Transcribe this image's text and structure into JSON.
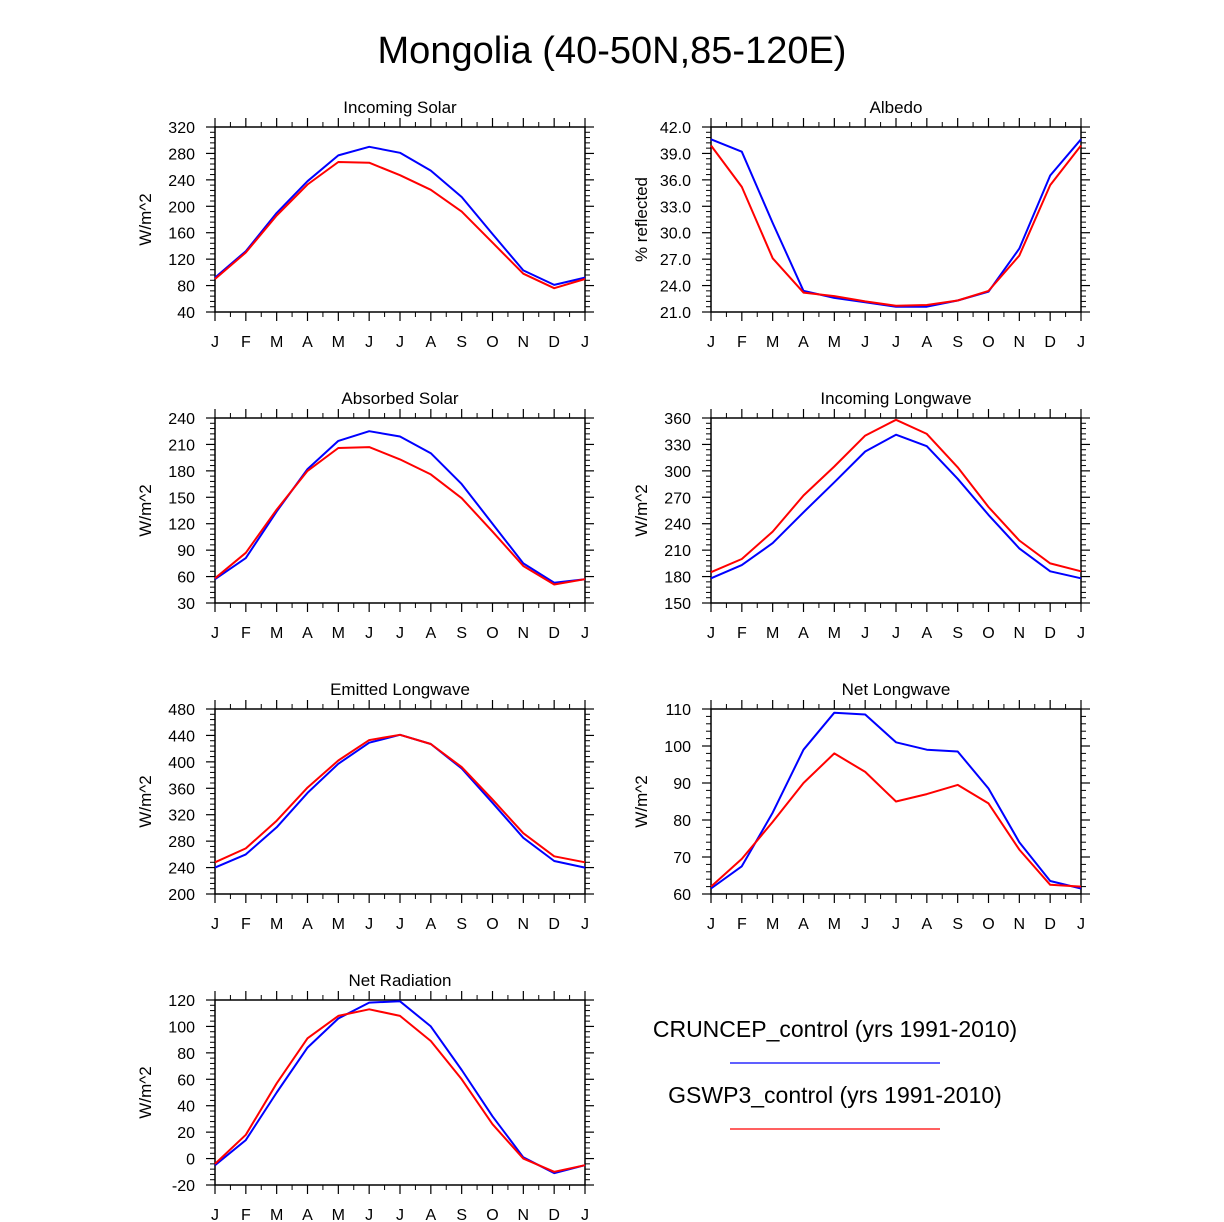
{
  "title": "Mongolia (40-50N,85-120E)",
  "legend": {
    "items": [
      {
        "label": "CRUNCEP_control (yrs 1991-2010)",
        "color": "#0000ff"
      },
      {
        "label": "GSWP3_control (yrs 1991-2010)",
        "color": "#ff0000"
      }
    ]
  },
  "chart_data": [
    {
      "type": "line",
      "title": "Incoming Solar",
      "ylabel": "W/m^2",
      "categories": [
        "J",
        "F",
        "M",
        "A",
        "M",
        "J",
        "J",
        "A",
        "S",
        "O",
        "N",
        "D",
        "J"
      ],
      "ylim": [
        40,
        320
      ],
      "yticks": [
        "40",
        "80",
        "120",
        "160",
        "200",
        "240",
        "280",
        "320"
      ],
      "series": [
        {
          "name": "CRUNCEP_control (yrs 1991-2010)",
          "color": "#0000ff",
          "values": [
            92,
            132,
            190,
            238,
            277,
            290,
            281,
            254,
            214,
            158,
            103,
            81,
            92
          ]
        },
        {
          "name": "GSWP3_control (yrs 1991-2010)",
          "color": "#ff0000",
          "values": [
            90,
            130,
            186,
            233,
            267,
            266,
            247,
            225,
            192,
            145,
            98,
            76,
            90
          ]
        }
      ]
    },
    {
      "type": "line",
      "title": "Albedo",
      "ylabel": "% reflected",
      "categories": [
        "J",
        "F",
        "M",
        "A",
        "M",
        "J",
        "J",
        "A",
        "S",
        "O",
        "N",
        "D",
        "J"
      ],
      "ylim": [
        21,
        42
      ],
      "yticks": [
        "21.0",
        "24.0",
        "27.0",
        "30.0",
        "33.0",
        "36.0",
        "39.0",
        "42.0"
      ],
      "series": [
        {
          "name": "CRUNCEP_control (yrs 1991-2010)",
          "color": "#0000ff",
          "values": [
            40.6,
            39.2,
            31.1,
            23.4,
            22.6,
            22.1,
            21.6,
            21.6,
            22.3,
            23.3,
            28.2,
            36.5,
            40.6
          ]
        },
        {
          "name": "GSWP3_control (yrs 1991-2010)",
          "color": "#ff0000",
          "values": [
            39.9,
            35.2,
            27.1,
            23.2,
            22.8,
            22.2,
            21.7,
            21.8,
            22.3,
            23.4,
            27.4,
            35.4,
            39.9
          ]
        }
      ]
    },
    {
      "type": "line",
      "title": "Absorbed Solar",
      "ylabel": "W/m^2",
      "categories": [
        "J",
        "F",
        "M",
        "A",
        "M",
        "J",
        "J",
        "A",
        "S",
        "O",
        "N",
        "D",
        "J"
      ],
      "ylim": [
        30,
        240
      ],
      "yticks": [
        "30",
        "60",
        "90",
        "120",
        "150",
        "180",
        "210",
        "240"
      ],
      "series": [
        {
          "name": "CRUNCEP_control (yrs 1991-2010)",
          "color": "#0000ff",
          "values": [
            57,
            81,
            134,
            182,
            214,
            225,
            219,
            200,
            165,
            120,
            75,
            53,
            57
          ]
        },
        {
          "name": "GSWP3_control (yrs 1991-2010)",
          "color": "#ff0000",
          "values": [
            58,
            87,
            136,
            180,
            206,
            207,
            193,
            176,
            149,
            111,
            72,
            51,
            57
          ]
        }
      ]
    },
    {
      "type": "line",
      "title": "Incoming Longwave",
      "ylabel": "W/m^2",
      "categories": [
        "J",
        "F",
        "M",
        "A",
        "M",
        "J",
        "J",
        "A",
        "S",
        "O",
        "N",
        "D",
        "J"
      ],
      "ylim": [
        150,
        360
      ],
      "yticks": [
        "150",
        "180",
        "210",
        "240",
        "270",
        "300",
        "330",
        "360"
      ],
      "series": [
        {
          "name": "CRUNCEP_control (yrs 1991-2010)",
          "color": "#0000ff",
          "values": [
            178,
            193,
            218,
            253,
            287,
            322,
            341,
            328,
            291,
            250,
            212,
            186,
            178
          ]
        },
        {
          "name": "GSWP3_control (yrs 1991-2010)",
          "color": "#ff0000",
          "values": [
            185,
            200,
            231,
            272,
            305,
            340,
            358,
            342,
            304,
            259,
            221,
            195,
            186
          ]
        }
      ]
    },
    {
      "type": "line",
      "title": "Emitted Longwave",
      "ylabel": "W/m^2",
      "categories": [
        "J",
        "F",
        "M",
        "A",
        "M",
        "J",
        "J",
        "A",
        "S",
        "O",
        "N",
        "D",
        "J"
      ],
      "ylim": [
        200,
        480
      ],
      "yticks": [
        "200",
        "240",
        "280",
        "320",
        "360",
        "400",
        "440",
        "480"
      ],
      "series": [
        {
          "name": "CRUNCEP_control (yrs 1991-2010)",
          "color": "#0000ff",
          "values": [
            240,
            260,
            301,
            353,
            397,
            429,
            441,
            427,
            390,
            338,
            285,
            250,
            240
          ]
        },
        {
          "name": "GSWP3_control (yrs 1991-2010)",
          "color": "#ff0000",
          "values": [
            248,
            269,
            311,
            361,
            402,
            433,
            441,
            427,
            392,
            343,
            292,
            257,
            248
          ]
        }
      ]
    },
    {
      "type": "line",
      "title": "Net Longwave",
      "ylabel": "W/m^2",
      "categories": [
        "J",
        "F",
        "M",
        "A",
        "M",
        "J",
        "J",
        "A",
        "S",
        "O",
        "N",
        "D",
        "J"
      ],
      "ylim": [
        60,
        110
      ],
      "yticks": [
        "60",
        "70",
        "80",
        "90",
        "100",
        "110"
      ],
      "series": [
        {
          "name": "CRUNCEP_control (yrs 1991-2010)",
          "color": "#0000ff",
          "values": [
            61.5,
            67.5,
            82,
            99,
            109,
            108.5,
            101,
            99,
            98.5,
            88.5,
            74,
            63.5,
            61.5
          ]
        },
        {
          "name": "GSWP3_control (yrs 1991-2010)",
          "color": "#ff0000",
          "values": [
            62,
            69.5,
            79.5,
            90,
            98,
            93,
            85,
            87,
            89.5,
            84.5,
            72,
            62.5,
            62
          ]
        }
      ]
    },
    {
      "type": "line",
      "title": "Net Radiation",
      "ylabel": "W/m^2",
      "categories": [
        "J",
        "F",
        "M",
        "A",
        "M",
        "J",
        "J",
        "A",
        "S",
        "O",
        "N",
        "D",
        "J"
      ],
      "ylim": [
        -20,
        120
      ],
      "yticks": [
        "-20",
        "0",
        "20",
        "40",
        "60",
        "80",
        "100",
        "120"
      ],
      "series": [
        {
          "name": "CRUNCEP_control (yrs 1991-2010)",
          "color": "#0000ff",
          "values": [
            -5,
            14,
            50,
            84,
            106,
            118,
            119,
            100,
            67,
            32,
            1,
            -11,
            -5
          ]
        },
        {
          "name": "GSWP3_control (yrs 1991-2010)",
          "color": "#ff0000",
          "values": [
            -4,
            18,
            57,
            91,
            108,
            113,
            108,
            89,
            60,
            26,
            0,
            -10,
            -5
          ]
        }
      ]
    }
  ]
}
